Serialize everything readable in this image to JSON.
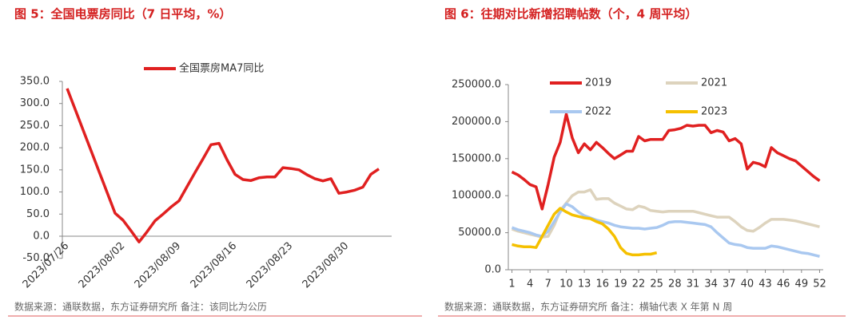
{
  "chart_data": [
    {
      "type": "line",
      "title": "图 5：全国电票房同比（7 日平均，%）",
      "source": "数据来源：通联数据，东方证券研究所 备注：该同比为公历",
      "categories": [
        "2023/07/26",
        null,
        null,
        null,
        null,
        null,
        null,
        "2023/08/02",
        null,
        null,
        null,
        null,
        null,
        null,
        "2023/08/09",
        null,
        null,
        null,
        null,
        null,
        null,
        "2023/08/16",
        null,
        null,
        null,
        null,
        null,
        null,
        "2023/08/23",
        null,
        null,
        null,
        null,
        null,
        null,
        "2023/08/30",
        null,
        null,
        null,
        null
      ],
      "series": [
        {
          "name": "全国票房MA7同比",
          "color": "#e02020",
          "values": [
            334,
            287,
            240,
            193,
            146,
            99,
            52,
            36,
            12,
            -13,
            10,
            35,
            50,
            66,
            80,
            112,
            144,
            175,
            207,
            210,
            173,
            140,
            128,
            126,
            132,
            134,
            134,
            155,
            153,
            150,
            139,
            130,
            125,
            130,
            97,
            100,
            104,
            111,
            140,
            152
          ]
        }
      ],
      "ylim": [
        -50,
        350
      ],
      "yticks": [
        {
          "value": -50,
          "label": "-50.0"
        },
        {
          "value": 0,
          "label": "0.0"
        },
        {
          "value": 50,
          "label": "50.0"
        },
        {
          "value": 100,
          "label": "100.0"
        },
        {
          "value": 150,
          "label": "150.0"
        },
        {
          "value": 200,
          "label": "200.0"
        },
        {
          "value": 250,
          "label": "250.0"
        },
        {
          "value": 300,
          "label": "300.0"
        },
        {
          "value": 350,
          "label": "350.0"
        }
      ],
      "legend": "top",
      "grid": false
    },
    {
      "type": "line",
      "title": "图 6：往期对比新增招聘帖数（个，4 周平均）",
      "source": "数据来源：通联数据，东方证券研究所 备注：横轴代表 X 年第 N 周",
      "x": [
        1,
        2,
        3,
        4,
        5,
        6,
        7,
        8,
        9,
        10,
        11,
        12,
        13,
        14,
        15,
        16,
        17,
        18,
        19,
        20,
        21,
        22,
        23,
        24,
        25,
        26,
        27,
        28,
        29,
        30,
        31,
        32,
        33,
        34,
        35,
        36,
        37,
        38,
        39,
        40,
        41,
        42,
        43,
        44,
        45,
        46,
        47,
        48,
        49,
        50,
        51,
        52
      ],
      "series": [
        {
          "name": "2019",
          "color": "#e02020",
          "values": [
            132000,
            128000,
            122000,
            115000,
            112000,
            82000,
            115000,
            152000,
            172000,
            210000,
            178000,
            158000,
            170000,
            162000,
            172000,
            165000,
            157000,
            150000,
            155000,
            160000,
            160000,
            180000,
            174000,
            176000,
            176000,
            176000,
            188000,
            189000,
            191000,
            195000,
            194000,
            195000,
            195000,
            185000,
            188000,
            186000,
            174000,
            177000,
            170000,
            136000,
            145000,
            143000,
            139000,
            165000,
            158000,
            154000,
            150000,
            147000,
            140000,
            133000,
            126000,
            120000
          ]
        },
        {
          "name": "2021",
          "color": "#ddd3bd",
          "values": [
            55000,
            52000,
            50000,
            48000,
            46000,
            44000,
            45000,
            60000,
            80000,
            90000,
            100000,
            105000,
            105000,
            108000,
            95000,
            96000,
            96000,
            90000,
            86000,
            82000,
            81000,
            86000,
            84000,
            80000,
            79000,
            78000,
            79000,
            79000,
            79000,
            79000,
            79000,
            77000,
            75000,
            73000,
            71000,
            71000,
            71000,
            65000,
            58000,
            53000,
            52000,
            57000,
            63000,
            68000,
            68000,
            68000,
            67000,
            66000,
            64000,
            62000,
            60000,
            58000
          ]
        },
        {
          "name": "2022",
          "color": "#a9c8f0",
          "values": [
            57000,
            54000,
            52000,
            50000,
            47000,
            45000,
            52000,
            65000,
            78000,
            89000,
            85000,
            78000,
            73000,
            70000,
            67000,
            65000,
            63000,
            60000,
            58000,
            57000,
            56000,
            56000,
            55000,
            56000,
            57000,
            60000,
            64000,
            65000,
            65000,
            64000,
            63000,
            62000,
            61000,
            58000,
            50000,
            43000,
            36000,
            34000,
            33000,
            30000,
            29000,
            29000,
            29000,
            32000,
            31000,
            29000,
            27000,
            25000,
            23000,
            22000,
            20000,
            18000
          ]
        },
        {
          "name": "2023",
          "color": "#f5c000",
          "values": [
            34000,
            32000,
            31000,
            31000,
            30000,
            45000,
            60000,
            75000,
            83000,
            78000,
            74000,
            72000,
            70000,
            69000,
            65000,
            62000,
            55000,
            45000,
            30000,
            22000,
            20000,
            20000,
            21000,
            21000,
            23000,
            null,
            null,
            null,
            null,
            null,
            null,
            null,
            null,
            null,
            null,
            null,
            null,
            null,
            null,
            null,
            null,
            null,
            null,
            null,
            null,
            null,
            null,
            null,
            null,
            null,
            null,
            null
          ]
        }
      ],
      "xlim": [
        0.4,
        52.6
      ],
      "xticks": [
        1,
        4,
        7,
        10,
        13,
        16,
        19,
        22,
        25,
        28,
        31,
        34,
        37,
        40,
        43,
        46,
        49,
        52
      ],
      "ylim": [
        0,
        250000
      ],
      "yticks": [
        {
          "value": 0,
          "label": "0.0"
        },
        {
          "value": 50000,
          "label": "50000.0"
        },
        {
          "value": 100000,
          "label": "100000.0"
        },
        {
          "value": 150000,
          "label": "150000.0"
        },
        {
          "value": 200000,
          "label": "200000.0"
        },
        {
          "value": 250000,
          "label": "250000.0"
        }
      ],
      "legend": "top",
      "grid": false
    }
  ]
}
